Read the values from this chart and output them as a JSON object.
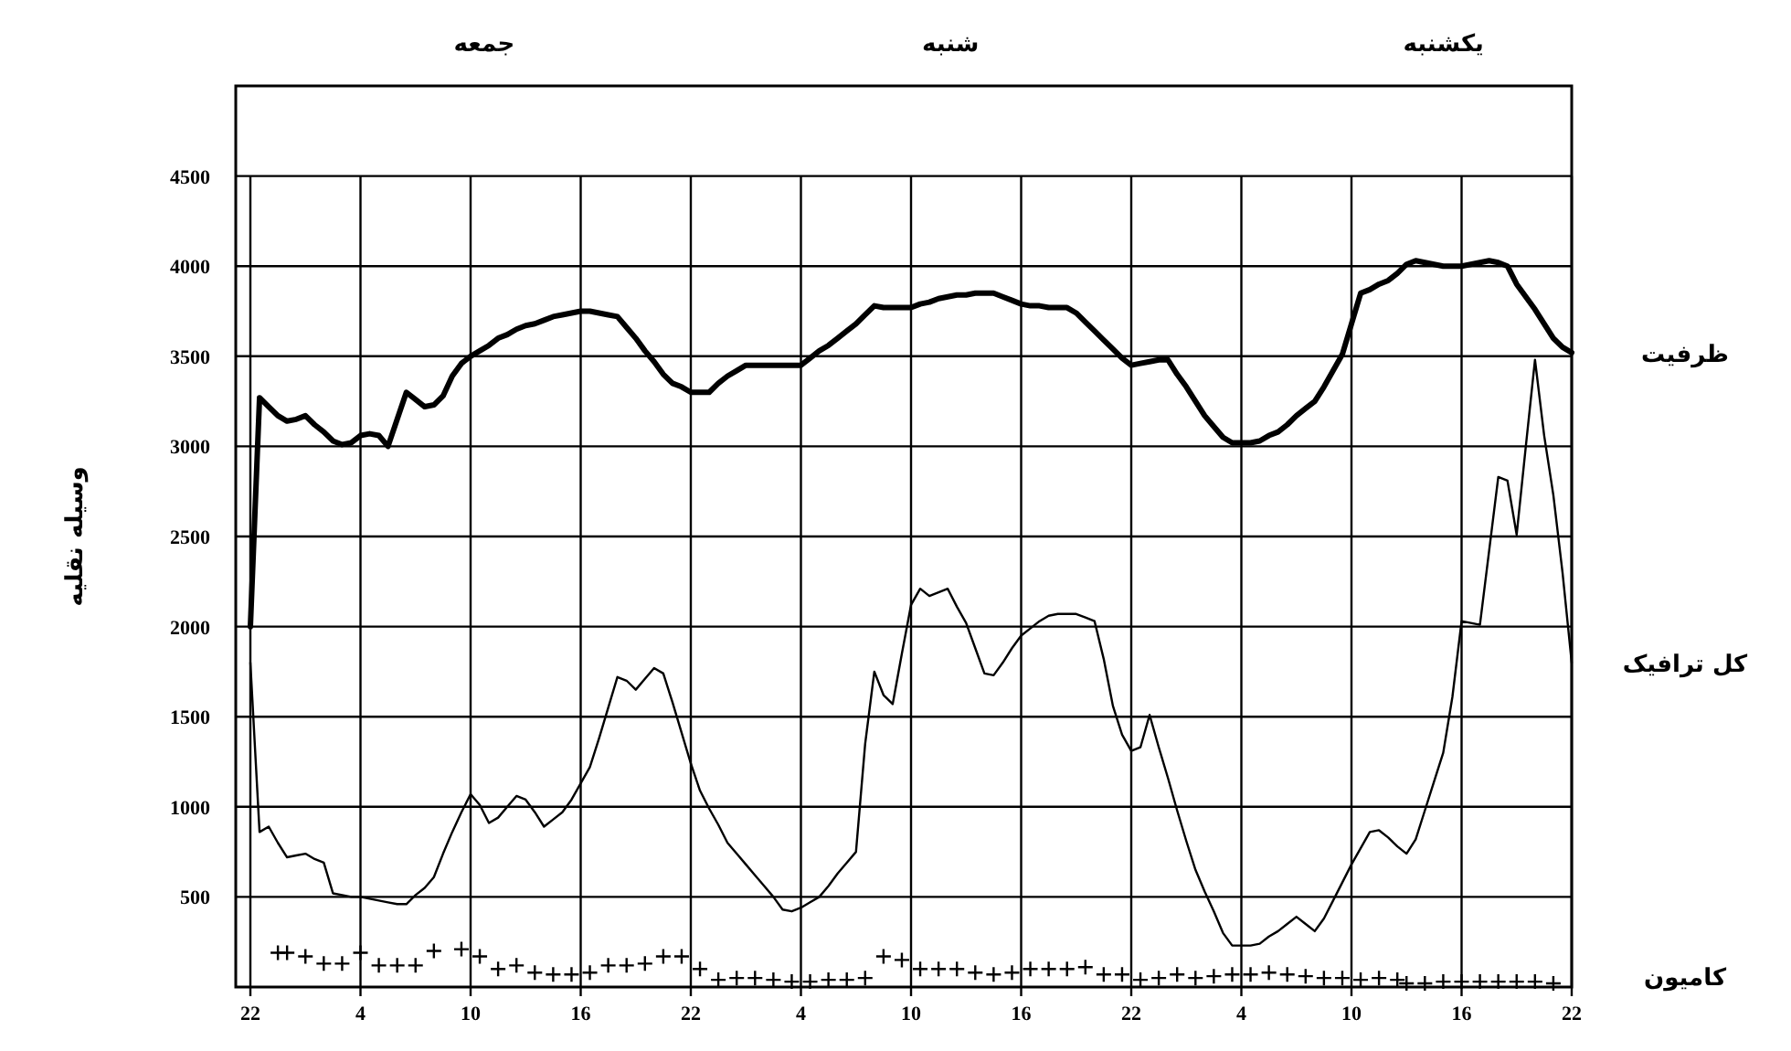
{
  "chart_data": {
    "type": "line",
    "ylabel": "وسیله نقلیه",
    "annotations": [
      "جمعه",
      "شنبه",
      "یکشنبه"
    ],
    "categories": [
      "22",
      null,
      null,
      null,
      null,
      null,
      null,
      null,
      null,
      null,
      null,
      null,
      "4",
      null,
      null,
      null,
      null,
      null,
      null,
      null,
      null,
      null,
      null,
      null,
      "10",
      null,
      null,
      null,
      null,
      null,
      null,
      null,
      null,
      null,
      null,
      null,
      "16",
      null,
      null,
      null,
      null,
      null,
      null,
      null,
      null,
      null,
      null,
      null,
      "22",
      null,
      null,
      null,
      null,
      null,
      null,
      null,
      null,
      null,
      null,
      null,
      "4",
      null,
      null,
      null,
      null,
      null,
      null,
      null,
      null,
      null,
      null,
      null,
      "10",
      null,
      null,
      null,
      null,
      null,
      null,
      null,
      null,
      null,
      null,
      null,
      "16",
      null,
      null,
      null,
      null,
      null,
      null,
      null,
      null,
      null,
      null,
      null,
      "22",
      null,
      null,
      null,
      null,
      null,
      null,
      null,
      null,
      null,
      null,
      null,
      "4",
      null,
      null,
      null,
      null,
      null,
      null,
      null,
      null,
      null,
      null,
      null,
      "10",
      null,
      null,
      null,
      null,
      null,
      null,
      null,
      null,
      null,
      null,
      null,
      "16",
      null,
      null,
      null,
      null,
      null,
      null,
      null,
      null,
      null,
      null,
      null,
      "22"
    ],
    "ylim": [
      0,
      5000
    ],
    "yticks": [
      500,
      1000,
      1500,
      2000,
      2500,
      3000,
      3500,
      4000,
      4500
    ],
    "grid": true,
    "line_style": "solid",
    "series": [
      {
        "name": "ظرفیت",
        "color": "#000000",
        "marker": "none",
        "values": [
          2000,
          3270,
          3220,
          3170,
          3140,
          3150,
          3170,
          3120,
          3080,
          3030,
          3010,
          3020,
          3060,
          3070,
          3060,
          3000,
          3150,
          3300,
          3260,
          3220,
          3230,
          3280,
          3390,
          3460,
          3500,
          3530,
          3560,
          3600,
          3620,
          3650,
          3670,
          3680,
          3700,
          3720,
          3730,
          3740,
          3750,
          3750,
          3740,
          3730,
          3720,
          3660,
          3600,
          3530,
          3470,
          3400,
          3350,
          3330,
          3300,
          3300,
          3300,
          3350,
          3390,
          3420,
          3450,
          3450,
          3450,
          3450,
          3450,
          3450,
          3450,
          3490,
          3530,
          3560,
          3600,
          3640,
          3680,
          3730,
          3780,
          3770,
          3770,
          3770,
          3770,
          3790,
          3800,
          3820,
          3830,
          3840,
          3840,
          3850,
          3850,
          3850,
          3830,
          3810,
          3790,
          3780,
          3780,
          3770,
          3770,
          3770,
          3740,
          3690,
          3640,
          3590,
          3540,
          3490,
          3450,
          3460,
          3470,
          3480,
          3480,
          3400,
          3330,
          3250,
          3170,
          3110,
          3050,
          3020,
          3020,
          3020,
          3030,
          3060,
          3080,
          3120,
          3170,
          3210,
          3250,
          3330,
          3420,
          3510,
          3680,
          3850,
          3870,
          3900,
          3920,
          3960,
          4010,
          4030,
          4020,
          4010,
          4000,
          4000,
          4000,
          4010,
          4020,
          4030,
          4020,
          4000,
          3900,
          3830,
          3760,
          3680,
          3600,
          3550,
          3520
        ]
      },
      {
        "name": "کل ترافیک",
        "color": "#000000",
        "marker": "none",
        "values": [
          1800,
          860,
          890,
          800,
          720,
          730,
          740,
          710,
          690,
          520,
          510,
          500,
          500,
          490,
          480,
          470,
          460,
          460,
          510,
          550,
          610,
          740,
          860,
          970,
          1070,
          1010,
          910,
          940,
          1000,
          1060,
          1040,
          970,
          890,
          930,
          970,
          1040,
          1130,
          1220,
          1380,
          1550,
          1720,
          1700,
          1650,
          1710,
          1770,
          1740,
          1580,
          1410,
          1240,
          1090,
          990,
          900,
          800,
          740,
          680,
          620,
          560,
          500,
          430,
          420,
          440,
          470,
          500,
          560,
          630,
          690,
          750,
          1350,
          1750,
          1620,
          1570,
          1850,
          2120,
          2210,
          2170,
          2190,
          2210,
          2110,
          2020,
          1880,
          1740,
          1730,
          1800,
          1880,
          1950,
          1990,
          2030,
          2060,
          2070,
          2070,
          2070,
          2050,
          2030,
          1820,
          1560,
          1400,
          1310,
          1330,
          1510,
          1330,
          1160,
          980,
          810,
          650,
          530,
          420,
          300,
          230,
          230,
          230,
          240,
          280,
          310,
          350,
          390,
          350,
          310,
          380,
          480,
          580,
          680,
          770,
          860,
          870,
          830,
          780,
          740,
          820,
          980,
          1140,
          1300,
          1610,
          2030,
          2020,
          2010,
          2420,
          2830,
          2810,
          2510,
          3000,
          3480,
          3060,
          2730,
          2300,
          1800
        ]
      },
      {
        "name": "کامیون",
        "type": "scatter",
        "color": "#000000",
        "marker": "cross",
        "values": [
          null,
          null,
          null,
          190,
          190,
          null,
          170,
          null,
          130,
          null,
          130,
          null,
          190,
          null,
          120,
          null,
          120,
          null,
          120,
          null,
          200,
          null,
          null,
          210,
          null,
          170,
          null,
          100,
          null,
          120,
          null,
          80,
          null,
          70,
          null,
          70,
          null,
          80,
          null,
          120,
          null,
          120,
          null,
          130,
          null,
          170,
          null,
          170,
          null,
          100,
          null,
          40,
          null,
          50,
          null,
          50,
          null,
          40,
          null,
          30,
          null,
          30,
          null,
          40,
          null,
          40,
          null,
          50,
          null,
          170,
          null,
          150,
          null,
          100,
          null,
          100,
          null,
          100,
          null,
          80,
          null,
          70,
          null,
          80,
          null,
          100,
          null,
          100,
          null,
          100,
          null,
          110,
          null,
          70,
          null,
          70,
          null,
          40,
          null,
          50,
          null,
          70,
          null,
          50,
          null,
          60,
          null,
          70,
          null,
          70,
          null,
          80,
          null,
          70,
          null,
          60,
          null,
          50,
          null,
          50,
          null,
          40,
          null,
          50,
          null,
          40,
          20,
          null,
          20,
          null,
          30,
          null,
          30,
          null,
          30,
          null,
          30,
          null,
          30,
          null,
          30,
          null,
          20,
          null,
          null
        ]
      }
    ]
  }
}
